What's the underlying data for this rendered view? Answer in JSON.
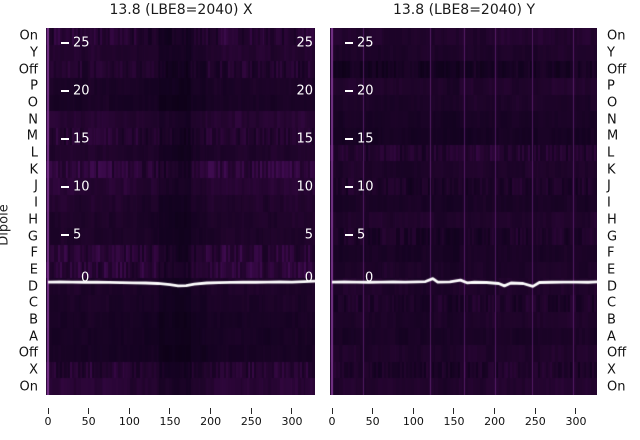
{
  "figure": {
    "background": "#ffffff",
    "text_color": "#1a1a1a",
    "tick_color": "#262626",
    "inner_label_color": "#ffffff",
    "line_color": "#ffffff"
  },
  "chart_data": {
    "type": "heatmap",
    "y_axis_label": "Dipole",
    "y_categories": [
      "On",
      "Y",
      "Off",
      "P",
      "O",
      "N",
      "M",
      "L",
      "K",
      "J",
      "I",
      "H",
      "G",
      "F",
      "E",
      "D",
      "C",
      "B",
      "A",
      "Off",
      "X",
      "On"
    ],
    "x_ticks": [
      0,
      50,
      100,
      150,
      200,
      250,
      300
    ],
    "x_range": [
      0,
      330
    ],
    "inner_scale_ticks": [
      25,
      20,
      15,
      10,
      5,
      0
    ],
    "colormap_stops": [
      "#06000b",
      "#130220",
      "#21042c",
      "#2f063c",
      "#3e0b4f"
    ],
    "panels": [
      {
        "id": "X",
        "title": "13.8 (LBE8=2040) X",
        "inner_labels_left": true,
        "inner_labels_right": true,
        "noise_seed": 13,
        "block_width": 7,
        "row_intensity": [
          0.58,
          0.52,
          0.5,
          0.4,
          0.36,
          0.62,
          0.58,
          0.48,
          0.72,
          0.64,
          0.5,
          0.46,
          0.44,
          0.62,
          0.7,
          0.44,
          0.4,
          0.36,
          0.34,
          0.34,
          0.56,
          0.64
        ],
        "col_profile": [
          1.0,
          1.0,
          0.98,
          1.0,
          0.95,
          0.9,
          0.85,
          0.58,
          0.52,
          0.78,
          0.95,
          1.0,
          1.0,
          0.98,
          1.0,
          1.0,
          1.0
        ],
        "striped_rows": [
          0,
          2,
          6,
          8,
          13,
          14,
          20
        ],
        "bright_lines_x": [],
        "line": {
          "x": [
            0,
            15,
            30,
            45,
            60,
            75,
            90,
            105,
            120,
            135,
            150,
            160,
            170,
            180,
            195,
            210,
            225,
            240,
            255,
            270,
            285,
            300,
            315,
            330
          ],
          "y": [
            0.1,
            0.12,
            0.1,
            0.08,
            0.1,
            0.06,
            0.04,
            0.02,
            0.0,
            -0.05,
            -0.18,
            -0.3,
            -0.28,
            -0.12,
            0.0,
            0.04,
            0.06,
            0.1,
            0.08,
            0.1,
            0.12,
            0.1,
            0.14,
            0.2
          ]
        }
      },
      {
        "id": "Y",
        "title": "13.8 (LBE8=2040) Y",
        "inner_labels_left": true,
        "inner_labels_right": false,
        "noise_seed": 77,
        "block_width": 13,
        "row_intensity": [
          0.52,
          0.46,
          0.3,
          0.48,
          0.42,
          0.36,
          0.32,
          0.52,
          0.46,
          0.42,
          0.38,
          0.5,
          0.4,
          0.36,
          0.44,
          0.48,
          0.42,
          0.46,
          0.38,
          0.48,
          0.44,
          0.54
        ],
        "col_profile": [
          0.95,
          1.0,
          0.95,
          1.0,
          0.9,
          0.92,
          0.95,
          0.85,
          1.0,
          1.0,
          1.02,
          1.0,
          0.98,
          1.02,
          1.0,
          1.02,
          1.0
        ],
        "striped_rows": [
          2,
          7,
          9,
          12,
          16,
          20
        ],
        "bright_lines_x": [
          38,
          121,
          162,
          200,
          246,
          296
        ],
        "line": {
          "x": [
            0,
            15,
            30,
            45,
            60,
            75,
            90,
            105,
            115,
            124,
            130,
            145,
            158,
            166,
            175,
            190,
            205,
            212,
            220,
            235,
            247,
            255,
            270,
            285,
            300,
            315,
            330
          ],
          "y": [
            0.1,
            0.12,
            0.1,
            0.08,
            0.1,
            0.12,
            0.1,
            0.12,
            0.15,
            0.45,
            0.1,
            0.12,
            0.3,
            0.02,
            0.08,
            0.05,
            -0.05,
            -0.3,
            0.0,
            -0.05,
            -0.35,
            0.05,
            0.08,
            0.1,
            0.1,
            0.08,
            0.12
          ]
        }
      }
    ]
  }
}
